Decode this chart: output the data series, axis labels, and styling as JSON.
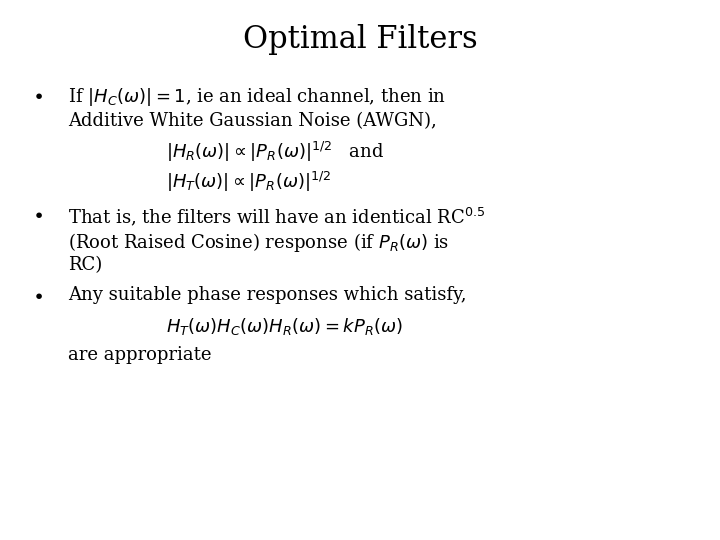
{
  "title": "Optimal Filters",
  "title_fontsize": 22,
  "background_color": "#ffffff",
  "text_color": "#000000",
  "bullet1_line1": "If $|H_C(\\omega)|=1$, ie an ideal channel, then in",
  "bullet1_line2": "Additive White Gaussian Noise (AWGN),",
  "formula1": "$|H_R(\\omega)| \\propto |P_R(\\omega)|^{1/2}$   and",
  "formula2": "$|H_T(\\omega)| \\propto |P_R(\\omega)|^{1/2}$",
  "bullet2_line1": "That is, the filters will have an identical RC$^{0.5}$",
  "bullet2_line2": "(Root Raised Cosine) response (if $P_R(\\omega)$ is",
  "bullet2_line3": "RC)",
  "bullet3_line1": "Any suitable phase responses which satisfy,",
  "formula3": "$H_T(\\omega)H_C(\\omega)H_R(\\omega) = kP_R(\\omega)$",
  "bullet3_line2": "are appropriate",
  "body_fontsize": 13,
  "formula_fontsize": 13
}
